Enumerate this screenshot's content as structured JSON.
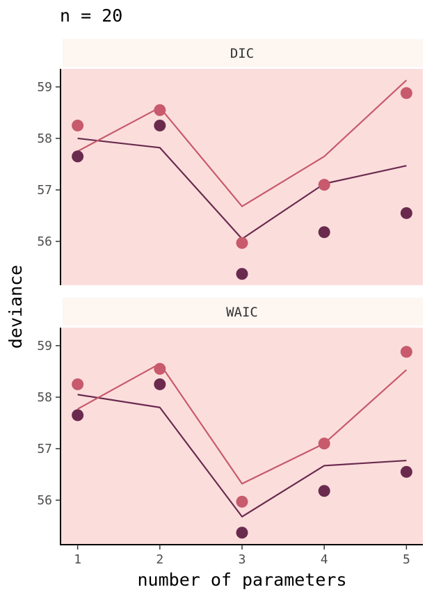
{
  "title": "n = 20",
  "xlabel": "number of parameters",
  "ylabel": "deviance",
  "colors": {
    "panel_bg": "#fbdedc",
    "strip_bg": "#fdf6f1",
    "dark": "#6a2a4e",
    "light": "#c75a6c"
  },
  "chart_data": {
    "type": "scatter",
    "x_ticks": [
      1,
      2,
      3,
      4,
      5
    ],
    "y_ticks": [
      56,
      57,
      58,
      59
    ],
    "ylim": [
      55.15,
      59.35
    ],
    "xlim": [
      0.8,
      5.2
    ],
    "panels": [
      {
        "label": "DIC",
        "points": [
          {
            "name": "dark",
            "values": [
              57.65,
              58.25,
              55.37,
              56.18,
              56.55
            ]
          },
          {
            "name": "light",
            "values": [
              58.25,
              58.55,
              55.97,
              57.1,
              58.88
            ]
          }
        ],
        "lines": [
          {
            "name": "dark",
            "values": [
              58.0,
              57.82,
              56.05,
              57.12,
              57.47
            ]
          },
          {
            "name": "light",
            "values": [
              57.75,
              58.6,
              56.68,
              57.65,
              59.13
            ]
          }
        ]
      },
      {
        "label": "WAIC",
        "points": [
          {
            "name": "dark",
            "values": [
              57.65,
              58.25,
              55.37,
              56.18,
              56.55
            ]
          },
          {
            "name": "light",
            "values": [
              58.25,
              58.55,
              55.97,
              57.1,
              58.88
            ]
          }
        ],
        "lines": [
          {
            "name": "dark",
            "values": [
              58.05,
              57.8,
              55.68,
              56.67,
              56.77
            ]
          },
          {
            "name": "light",
            "values": [
              57.77,
              58.65,
              56.32,
              57.1,
              58.53
            ]
          }
        ]
      }
    ]
  }
}
